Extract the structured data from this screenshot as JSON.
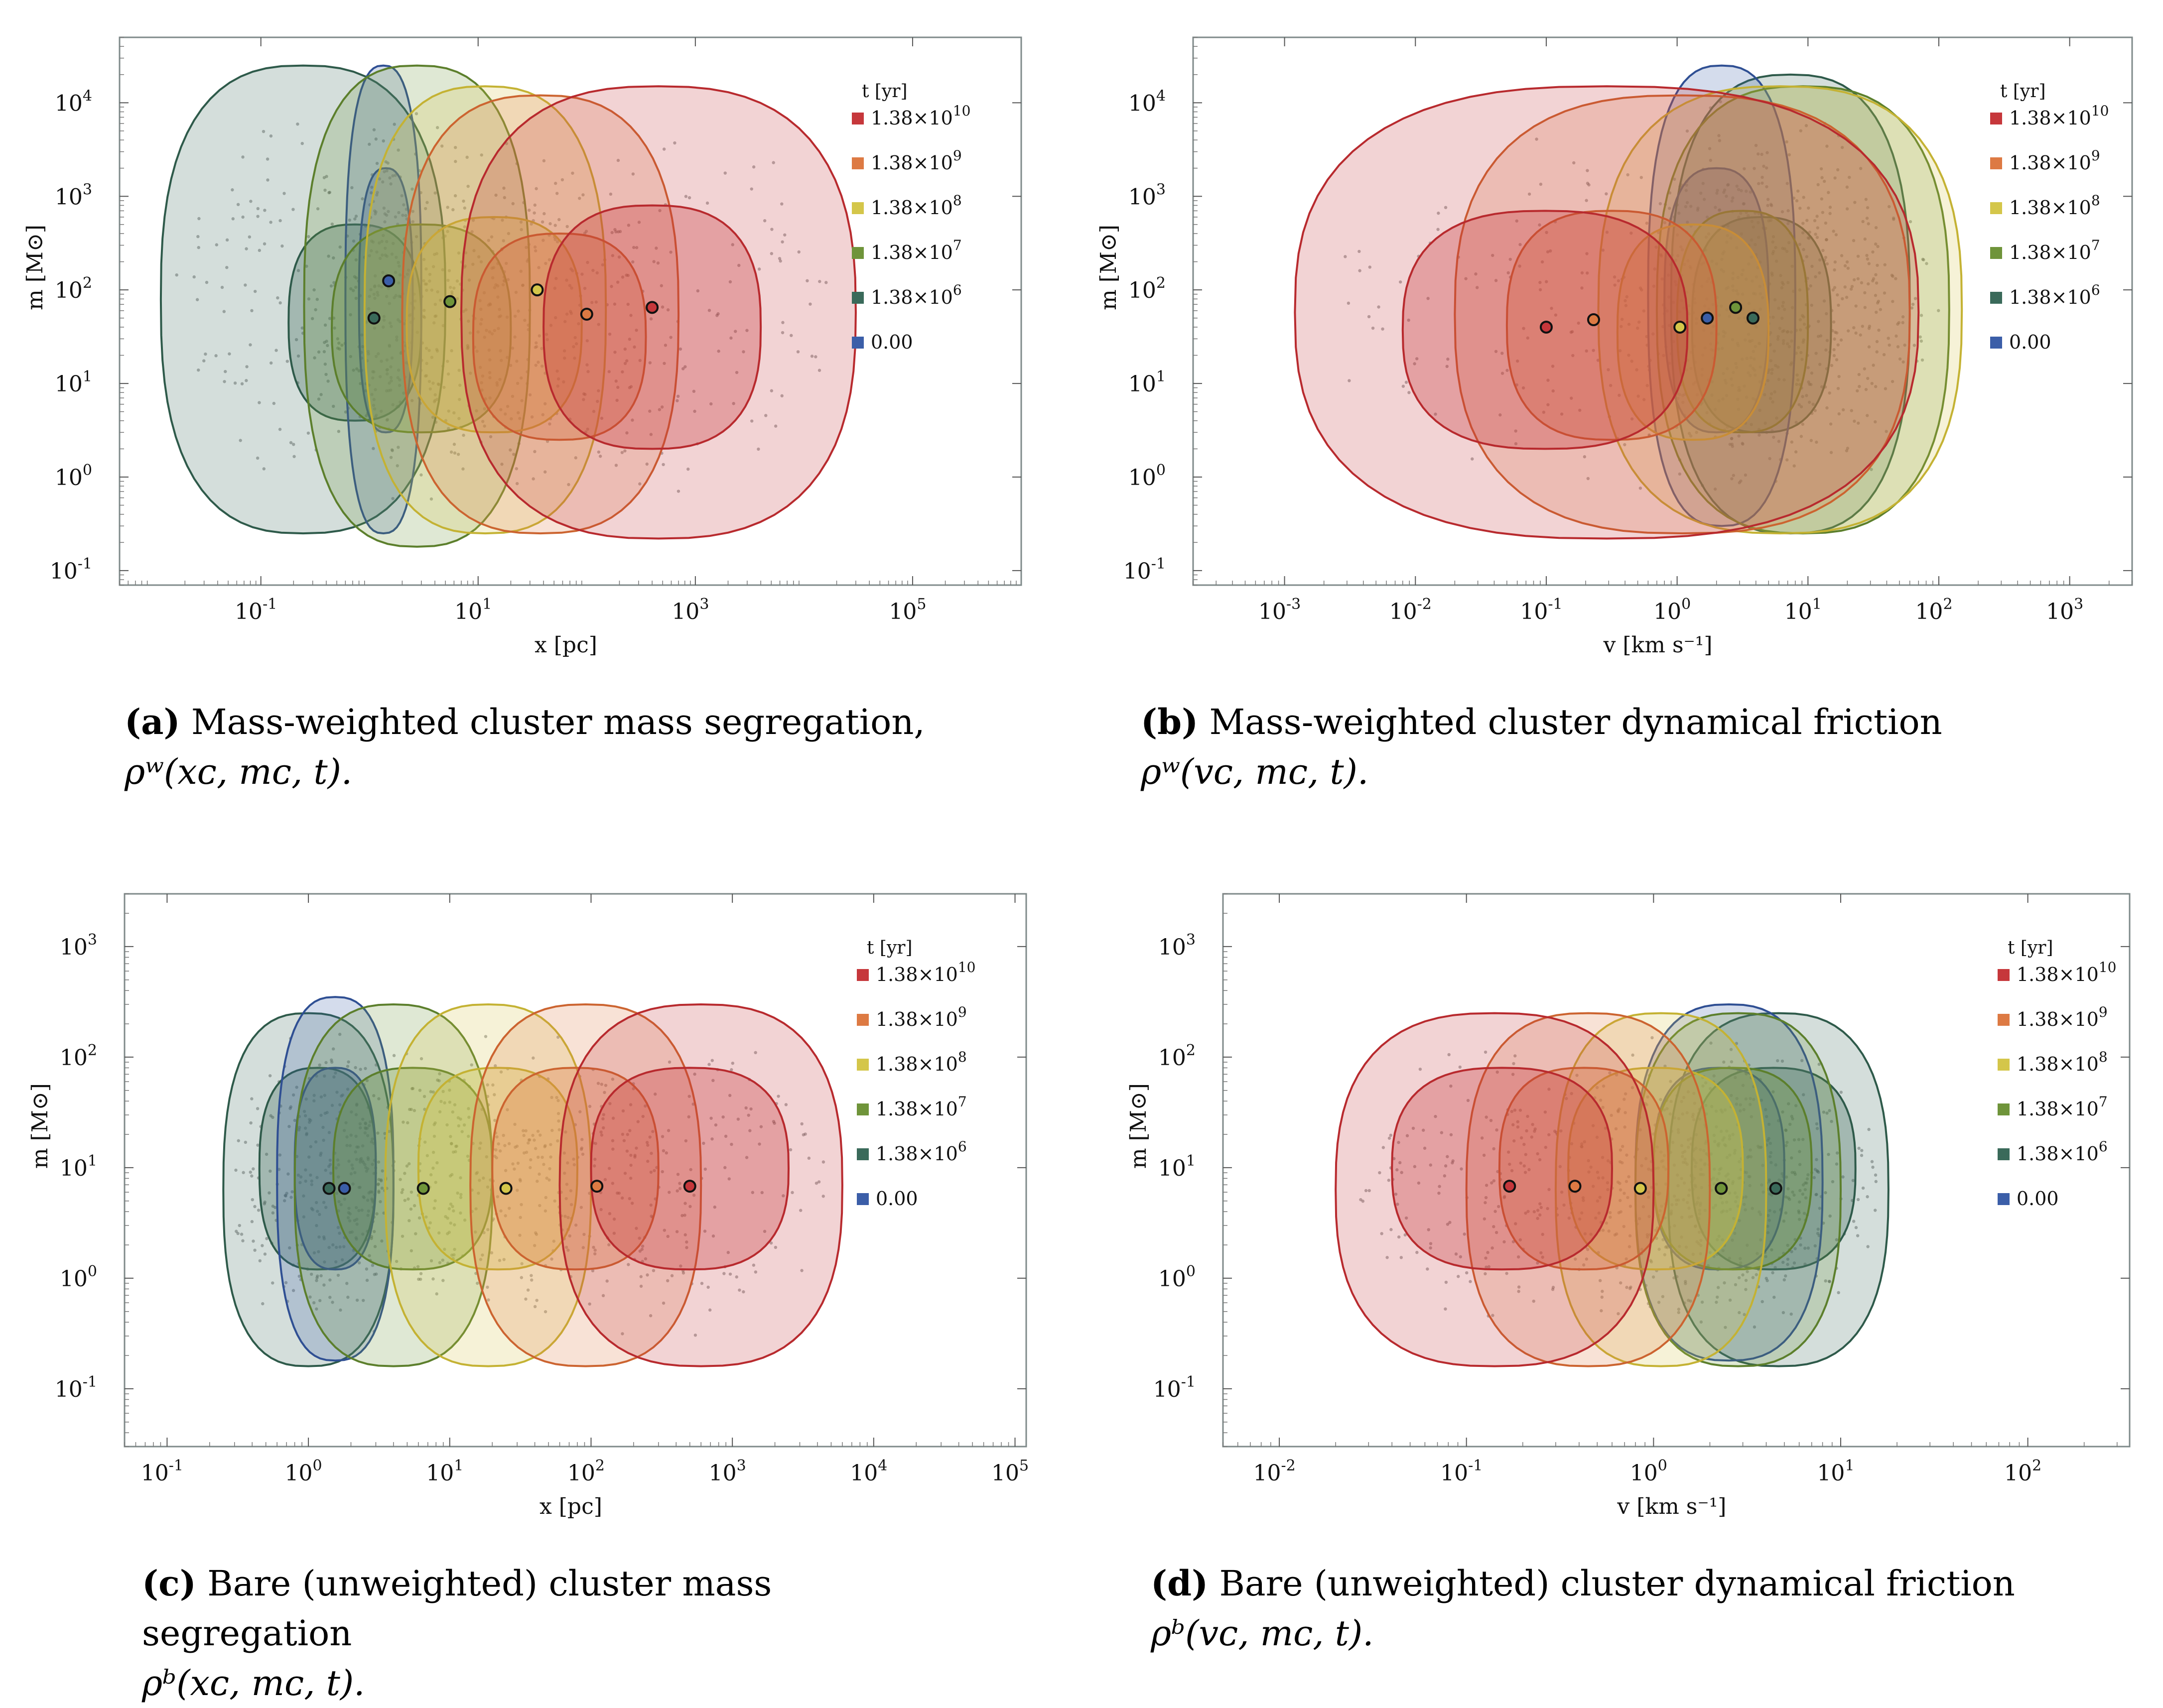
{
  "legend": {
    "title": "t [yr]",
    "entries": [
      {
        "label_main": "1.38×10",
        "label_exp": "10",
        "color": "#c6373b"
      },
      {
        "label_main": "1.38×10",
        "label_exp": "9",
        "color": "#dd7a43"
      },
      {
        "label_main": "1.38×10",
        "label_exp": "8",
        "color": "#d4c64a"
      },
      {
        "label_main": "1.38×10",
        "label_exp": "7",
        "color": "#6f943a"
      },
      {
        "label_main": "1.38×10",
        "label_exp": "6",
        "color": "#3a6a5a"
      },
      {
        "label_main": "0.00",
        "label_exp": "",
        "color": "#3b5ea8"
      }
    ]
  },
  "captions": {
    "a": {
      "label": "(a)",
      "text": " Mass-weighted cluster mass segregation,",
      "math": "ρʷ(xᴄ, mᴄ, t)."
    },
    "b": {
      "label": "(b)",
      "text": " Mass-weighted cluster dynamical friction",
      "math": "ρʷ(vᴄ, mᴄ, t)."
    },
    "c": {
      "label": "(c)",
      "text": " Bare (unweighted) cluster mass segregation",
      "math": "ρᵇ(xᴄ, mᴄ, t)."
    },
    "d": {
      "label": "(d)",
      "text": " Bare (unweighted) cluster dynamical friction",
      "math": "ρᵇ(vᴄ, mᴄ, t)."
    }
  },
  "chart_data": [
    {
      "type": "scatter",
      "id": "a",
      "title": "",
      "xlabel": "x [pc]",
      "ylabel": "m [M⊙]",
      "xscale": "log",
      "yscale": "log",
      "xlim": [
        0.005,
        1000000
      ],
      "ylim": [
        0.07,
        50000
      ],
      "xticks": [
        {
          "v": 0.1,
          "label": "10",
          "exp": "-1"
        },
        {
          "v": 10,
          "label": "10",
          "exp": "1"
        },
        {
          "v": 1000,
          "label": "10",
          "exp": "3"
        },
        {
          "v": 100000,
          "label": "10",
          "exp": "5"
        }
      ],
      "yticks": [
        {
          "v": 0.1,
          "label": "10",
          "exp": "-1"
        },
        {
          "v": 1,
          "label": "10",
          "exp": "0"
        },
        {
          "v": 10,
          "label": "10",
          "exp": "1"
        },
        {
          "v": 100,
          "label": "10",
          "exp": "2"
        },
        {
          "v": 1000,
          "label": "10",
          "exp": "3"
        },
        {
          "v": 10000,
          "label": "10",
          "exp": "4"
        }
      ],
      "series": [
        {
          "name": "0.00",
          "cx": 1.5,
          "cy": 125,
          "outer": {
            "x": [
              0.6,
              3.0
            ],
            "y": [
              0.25,
              25000
            ]
          },
          "inner": {
            "x": [
              0.8,
              2.5
            ],
            "y": [
              3,
              2000
            ]
          }
        },
        {
          "name": "1.38e6",
          "cx": 1.1,
          "cy": 50,
          "outer": {
            "x": [
              0.012,
              5
            ],
            "y": [
              0.25,
              25000
            ]
          },
          "inner": {
            "x": [
              0.18,
              3
            ],
            "y": [
              4,
              500
            ]
          }
        },
        {
          "name": "1.38e7",
          "cx": 5.5,
          "cy": 75,
          "outer": {
            "x": [
              0.25,
              30
            ],
            "y": [
              0.18,
              25000
            ]
          },
          "inner": {
            "x": [
              0.45,
              20
            ],
            "y": [
              3,
              500
            ]
          }
        },
        {
          "name": "1.38e8",
          "cx": 35,
          "cy": 100,
          "outer": {
            "x": [
              0.9,
              150
            ],
            "y": [
              0.25,
              15000
            ]
          },
          "inner": {
            "x": [
              2.2,
              90
            ],
            "y": [
              3,
              600
            ]
          }
        },
        {
          "name": "1.38e9",
          "cx": 100,
          "cy": 55,
          "outer": {
            "x": [
              2,
              700
            ],
            "y": [
              0.25,
              12000
            ]
          },
          "inner": {
            "x": [
              9,
              350
            ],
            "y": [
              2.5,
              400
            ]
          }
        },
        {
          "name": "1.38e10",
          "cx": 400,
          "cy": 65,
          "outer": {
            "x": [
              7,
              30000
            ],
            "y": [
              0.22,
              15000
            ]
          },
          "inner": {
            "x": [
              40,
              4000
            ],
            "y": [
              2,
              800
            ]
          }
        }
      ]
    },
    {
      "type": "scatter",
      "id": "b",
      "title": "",
      "xlabel": "v [km s⁻¹]",
      "ylabel": "m [M⊙]",
      "xscale": "log",
      "yscale": "log",
      "xlim": [
        0.0002,
        3000
      ],
      "ylim": [
        0.07,
        50000
      ],
      "xticks": [
        {
          "v": 0.001,
          "label": "10",
          "exp": "-3"
        },
        {
          "v": 0.01,
          "label": "10",
          "exp": "-2"
        },
        {
          "v": 0.1,
          "label": "10",
          "exp": "-1"
        },
        {
          "v": 1,
          "label": "10",
          "exp": "0"
        },
        {
          "v": 10,
          "label": "10",
          "exp": "1"
        },
        {
          "v": 100,
          "label": "10",
          "exp": "2"
        },
        {
          "v": 1000,
          "label": "10",
          "exp": "3"
        }
      ],
      "yticks": [
        {
          "v": 0.1,
          "label": "10",
          "exp": "-1"
        },
        {
          "v": 1,
          "label": "10",
          "exp": "0"
        },
        {
          "v": 10,
          "label": "10",
          "exp": "1"
        },
        {
          "v": 100,
          "label": "10",
          "exp": "2"
        },
        {
          "v": 1000,
          "label": "10",
          "exp": "3"
        },
        {
          "v": 10000,
          "label": "10",
          "exp": "4"
        }
      ],
      "series": [
        {
          "name": "0.00",
          "cx": 1.7,
          "cy": 50,
          "outer": {
            "x": [
              0.6,
              8
            ],
            "y": [
              0.3,
              25000
            ]
          },
          "inner": {
            "x": [
              0.8,
              5
            ],
            "y": [
              3,
              2000
            ]
          }
        },
        {
          "name": "1.38e6",
          "cx": 3.8,
          "cy": 50,
          "outer": {
            "x": [
              0.9,
              60
            ],
            "y": [
              0.25,
              20000
            ]
          },
          "inner": {
            "x": [
              1.3,
              15
            ],
            "y": [
              3,
              600
            ]
          }
        },
        {
          "name": "1.38e7",
          "cx": 2.8,
          "cy": 65,
          "outer": {
            "x": [
              0.7,
              120
            ],
            "y": [
              0.25,
              15000
            ]
          },
          "inner": {
            "x": [
              1.0,
              10
            ],
            "y": [
              3,
              700
            ]
          }
        },
        {
          "name": "1.38e8",
          "cx": 1.05,
          "cy": 40,
          "outer": {
            "x": [
              0.25,
              150
            ],
            "y": [
              0.25,
              15000
            ]
          },
          "inner": {
            "x": [
              0.35,
              5
            ],
            "y": [
              2.5,
              500
            ]
          }
        },
        {
          "name": "1.38e9",
          "cx": 0.23,
          "cy": 48,
          "outer": {
            "x": [
              0.02,
              60
            ],
            "y": [
              0.25,
              12000
            ]
          },
          "inner": {
            "x": [
              0.05,
              2
            ],
            "y": [
              2.5,
              700
            ]
          }
        },
        {
          "name": "1.38e10",
          "cx": 0.1,
          "cy": 40,
          "outer": {
            "x": [
              0.0012,
              70
            ],
            "y": [
              0.22,
              15000
            ]
          },
          "inner": {
            "x": [
              0.008,
              1.2
            ],
            "y": [
              2,
              700
            ]
          }
        }
      ]
    },
    {
      "type": "scatter",
      "id": "c",
      "title": "",
      "xlabel": "x [pc]",
      "ylabel": "m [M⊙]",
      "xscale": "log",
      "yscale": "log",
      "xlim": [
        0.05,
        120000
      ],
      "ylim": [
        0.03,
        3000
      ],
      "xticks": [
        {
          "v": 0.1,
          "label": "10",
          "exp": "-1"
        },
        {
          "v": 1,
          "label": "10",
          "exp": "0"
        },
        {
          "v": 10,
          "label": "10",
          "exp": "1"
        },
        {
          "v": 100,
          "label": "10",
          "exp": "2"
        },
        {
          "v": 1000,
          "label": "10",
          "exp": "3"
        },
        {
          "v": 10000,
          "label": "10",
          "exp": "4"
        },
        {
          "v": 100000,
          "label": "10",
          "exp": "5"
        }
      ],
      "yticks": [
        {
          "v": 0.1,
          "label": "10",
          "exp": "-1"
        },
        {
          "v": 1,
          "label": "10",
          "exp": "0"
        },
        {
          "v": 10,
          "label": "10",
          "exp": "1"
        },
        {
          "v": 100,
          "label": "10",
          "exp": "2"
        },
        {
          "v": 1000,
          "label": "10",
          "exp": "3"
        }
      ],
      "series": [
        {
          "name": "0.00",
          "cx": 1.8,
          "cy": 6.5,
          "outer": {
            "x": [
              0.6,
              4
            ],
            "y": [
              0.18,
              350
            ]
          },
          "inner": {
            "x": [
              0.8,
              3
            ],
            "y": [
              1.2,
              80
            ]
          }
        },
        {
          "name": "1.38e6",
          "cx": 1.4,
          "cy": 6.5,
          "outer": {
            "x": [
              0.25,
              4
            ],
            "y": [
              0.16,
              250
            ]
          },
          "inner": {
            "x": [
              0.45,
              3
            ],
            "y": [
              1.2,
              80
            ]
          }
        },
        {
          "name": "1.38e7",
          "cx": 6.5,
          "cy": 6.5,
          "outer": {
            "x": [
              0.8,
              20
            ],
            "y": [
              0.16,
              300
            ]
          },
          "inner": {
            "x": [
              1.5,
              20
            ],
            "y": [
              1.2,
              80
            ]
          }
        },
        {
          "name": "1.38e8",
          "cx": 25,
          "cy": 6.5,
          "outer": {
            "x": [
              3.5,
              100
            ],
            "y": [
              0.16,
              300
            ]
          },
          "inner": {
            "x": [
              6,
              80
            ],
            "y": [
              1.2,
              80
            ]
          }
        },
        {
          "name": "1.38e9",
          "cx": 110,
          "cy": 6.8,
          "outer": {
            "x": [
              14,
              600
            ],
            "y": [
              0.16,
              300
            ]
          },
          "inner": {
            "x": [
              20,
              300
            ],
            "y": [
              1.2,
              80
            ]
          }
        },
        {
          "name": "1.38e10",
          "cx": 500,
          "cy": 6.8,
          "outer": {
            "x": [
              60,
              6000
            ],
            "y": [
              0.16,
              300
            ]
          },
          "inner": {
            "x": [
              100,
              2500
            ],
            "y": [
              1.2,
              80
            ]
          }
        }
      ]
    },
    {
      "type": "scatter",
      "id": "d",
      "title": "",
      "xlabel": "v [km s⁻¹]",
      "ylabel": "m [M⊙]",
      "xscale": "log",
      "yscale": "log",
      "xlim": [
        0.005,
        350
      ],
      "ylim": [
        0.03,
        3000
      ],
      "xticks": [
        {
          "v": 0.01,
          "label": "10",
          "exp": "-2"
        },
        {
          "v": 0.1,
          "label": "10",
          "exp": "-1"
        },
        {
          "v": 1,
          "label": "10",
          "exp": "0"
        },
        {
          "v": 10,
          "label": "10",
          "exp": "1"
        },
        {
          "v": 100,
          "label": "10",
          "exp": "2"
        }
      ],
      "yticks": [
        {
          "v": 0.1,
          "label": "10",
          "exp": "-1"
        },
        {
          "v": 1,
          "label": "10",
          "exp": "0"
        },
        {
          "v": 10,
          "label": "10",
          "exp": "1"
        },
        {
          "v": 100,
          "label": "10",
          "exp": "2"
        },
        {
          "v": 1000,
          "label": "10",
          "exp": "3"
        }
      ],
      "series": [
        {
          "name": "0.00",
          "cx": 2.3,
          "cy": 6.5,
          "outer": {
            "x": [
              0.8,
              8
            ],
            "y": [
              0.18,
              300
            ]
          },
          "inner": {
            "x": [
              1.0,
              5
            ],
            "y": [
              1.2,
              80
            ]
          }
        },
        {
          "name": "1.38e6",
          "cx": 4.5,
          "cy": 6.5,
          "outer": {
            "x": [
              1.2,
              18
            ],
            "y": [
              0.16,
              250
            ]
          },
          "inner": {
            "x": [
              1.6,
              12
            ],
            "y": [
              1.2,
              80
            ]
          }
        },
        {
          "name": "1.38e7",
          "cx": 2.3,
          "cy": 6.5,
          "outer": {
            "x": [
              0.8,
              10
            ],
            "y": [
              0.16,
              250
            ]
          },
          "inner": {
            "x": [
              1.0,
              7
            ],
            "y": [
              1.2,
              80
            ]
          }
        },
        {
          "name": "1.38e8",
          "cx": 0.85,
          "cy": 6.5,
          "outer": {
            "x": [
              0.3,
              4
            ],
            "y": [
              0.16,
              250
            ]
          },
          "inner": {
            "x": [
              0.35,
              3
            ],
            "y": [
              1.2,
              80
            ]
          }
        },
        {
          "name": "1.38e9",
          "cx": 0.38,
          "cy": 6.8,
          "outer": {
            "x": [
              0.1,
              2
            ],
            "y": [
              0.16,
              250
            ]
          },
          "inner": {
            "x": [
              0.15,
              1.2
            ],
            "y": [
              1.2,
              80
            ]
          }
        },
        {
          "name": "1.38e10",
          "cx": 0.17,
          "cy": 6.8,
          "outer": {
            "x": [
              0.02,
              1
            ],
            "y": [
              0.16,
              250
            ]
          },
          "inner": {
            "x": [
              0.04,
              0.6
            ],
            "y": [
              1.2,
              80
            ]
          }
        }
      ]
    }
  ]
}
